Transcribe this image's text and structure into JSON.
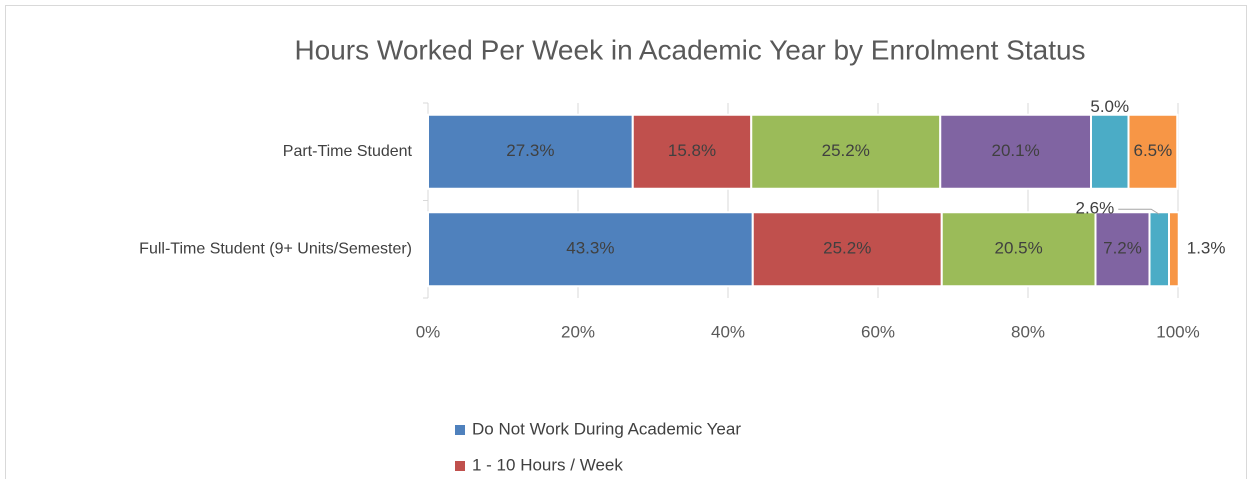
{
  "chart_data": {
    "type": "stacked-bar-horizontal",
    "title": "Hours Worked Per Week in Academic Year by Enrolment Status",
    "categories": [
      "Part-Time Student",
      "Full-Time Student (9+ Units/Semester)"
    ],
    "series": [
      {
        "name": "Do Not Work During Academic Year",
        "color": "#4f81bd",
        "values": [
          27.3,
          43.3
        ],
        "value_labels": [
          "27.3%",
          "43.3%"
        ]
      },
      {
        "name": "1 - 10 Hours / Week",
        "color": "#c0504d",
        "values": [
          15.8,
          25.2
        ],
        "value_labels": [
          "15.8%",
          "25.2%"
        ]
      },
      {
        "color": "#9bbb59",
        "values": [
          25.2,
          20.5
        ],
        "value_labels": [
          "25.2%",
          "20.5%"
        ]
      },
      {
        "color": "#8064a2",
        "values": [
          20.1,
          7.2
        ],
        "value_labels": [
          "20.1%",
          "7.2%"
        ]
      },
      {
        "color": "#4bacc6",
        "values": [
          5,
          2.6
        ],
        "value_labels": [
          "5.0%",
          "2.6%"
        ]
      },
      {
        "color": "#f79646",
        "values": [
          6.5,
          1.3
        ],
        "value_labels": [
          "6.5%",
          "1.3%"
        ]
      }
    ],
    "xlim": [
      0,
      100
    ],
    "xticks": [
      {
        "value": 0,
        "label": "0%"
      },
      {
        "value": 20,
        "label": "20%"
      },
      {
        "value": 40,
        "label": "40%"
      },
      {
        "value": 60,
        "label": "60%"
      },
      {
        "value": 80,
        "label": "80%"
      },
      {
        "value": 100,
        "label": "100%"
      }
    ],
    "grid": true
  }
}
